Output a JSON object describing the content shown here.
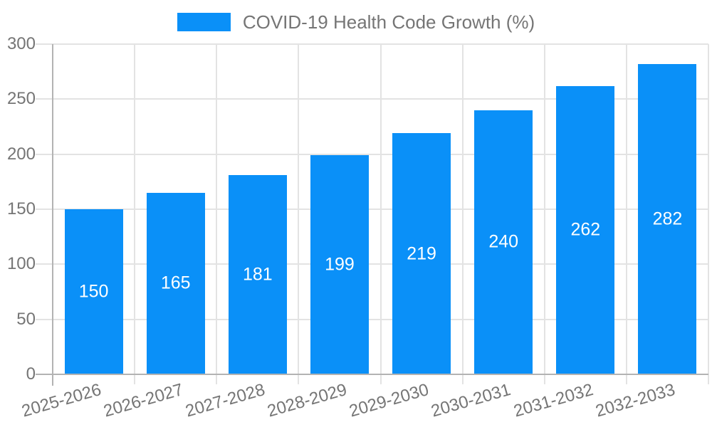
{
  "chart_data": {
    "type": "bar",
    "title": "COVID-19 Health Code Growth (%)",
    "categories": [
      "2025-2026",
      "2026-2027",
      "2027-2028",
      "2028-2029",
      "2029-2030",
      "2030-2031",
      "2031-2032",
      "2032-2033"
    ],
    "values": [
      150,
      165,
      181,
      199,
      219,
      240,
      262,
      282
    ],
    "xlabel": "",
    "ylabel": "",
    "ylim": [
      0,
      300
    ],
    "yticks": [
      0,
      50,
      100,
      150,
      200,
      250,
      300
    ],
    "grid": true,
    "legend_position": "top",
    "bar_color": "#0a90f8",
    "value_label_color": "#ffffff",
    "axis_color": "#b3b3b3",
    "gridline_color": "#e3e3e3",
    "label_color": "#757575",
    "x_label_rotation_deg": -16
  }
}
